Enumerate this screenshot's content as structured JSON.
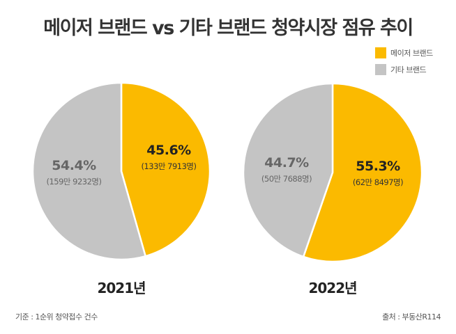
{
  "chart_data": [
    {
      "type": "pie",
      "title": "2021년",
      "categories": [
        "메이저 브랜드",
        "기타 브랜드"
      ],
      "values": [
        45.6,
        54.4
      ],
      "labels": [
        "45.6%",
        "54.4%"
      ],
      "counts": [
        "(133만 7913명)",
        "(159만 9232명)"
      ],
      "colors": [
        "#FBBA00",
        "#C4C4C4"
      ]
    },
    {
      "type": "pie",
      "title": "2022년",
      "categories": [
        "메이저 브랜드",
        "기타 브랜드"
      ],
      "values": [
        55.3,
        44.7
      ],
      "labels": [
        "55.3%",
        "44.7%"
      ],
      "counts": [
        "(62만 8497명)",
        "(50만 7688명)"
      ],
      "colors": [
        "#FBBA00",
        "#C4C4C4"
      ]
    }
  ],
  "title": "메이저 브랜드 vs 기타 브랜드 청약시장 점유 추이",
  "legend": [
    {
      "label": "메이저 브랜드",
      "color": "#FBBA00"
    },
    {
      "label": "기타 브랜드",
      "color": "#C4C4C4"
    }
  ],
  "footnote": "기준 : 1순위 청약접수 건수",
  "source": "출처 : 부동산R114"
}
